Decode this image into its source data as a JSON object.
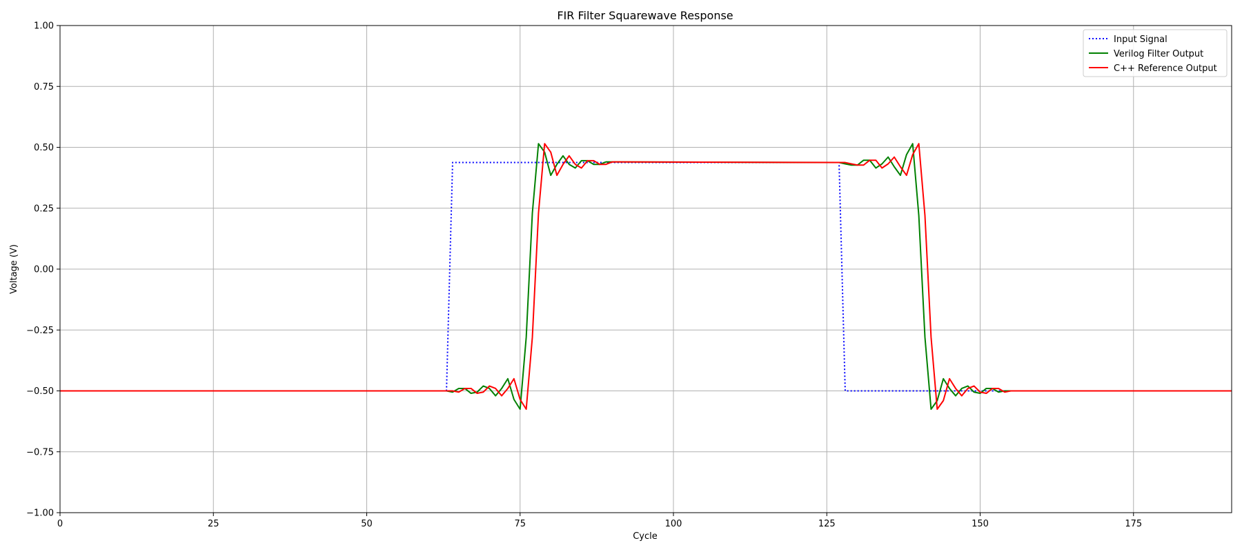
{
  "chart_data": {
    "type": "line",
    "title": "FIR Filter Squarewave Response",
    "xlabel": "Cycle",
    "ylabel": "Voltage (V)",
    "xlim": [
      0,
      191
    ],
    "ylim": [
      -1.0,
      1.0
    ],
    "xticks": [
      0,
      25,
      50,
      75,
      100,
      125,
      150,
      175
    ],
    "yticks": [
      -1.0,
      -0.75,
      -0.5,
      -0.25,
      0.0,
      0.25,
      0.5,
      0.75,
      1.0
    ],
    "xtick_labels": [
      "0",
      "25",
      "50",
      "75",
      "100",
      "125",
      "150",
      "175"
    ],
    "ytick_labels": [
      "−1.00",
      "−0.75",
      "−0.50",
      "−0.25",
      "0.00",
      "0.25",
      "0.50",
      "0.75",
      "1.00"
    ],
    "grid": true,
    "legend_position": "top-right",
    "series": [
      {
        "name": "Input Signal",
        "color": "#0000ff",
        "style": "dotted",
        "x": [
          0,
          63,
          64,
          127,
          128,
          191
        ],
        "y": [
          -0.5,
          -0.5,
          0.4375,
          0.4375,
          -0.5,
          -0.5
        ]
      },
      {
        "name": "Verilog Filter Output",
        "color": "#008000",
        "style": "solid",
        "x": [
          0,
          63,
          64,
          65,
          66,
          67,
          68,
          69,
          70,
          71,
          72,
          73,
          74,
          75,
          76,
          77,
          78,
          79,
          80,
          81,
          82,
          83,
          84,
          85,
          86,
          87,
          88,
          89,
          90,
          127,
          128,
          129,
          130,
          131,
          132,
          133,
          134,
          135,
          136,
          137,
          138,
          139,
          140,
          141,
          142,
          143,
          144,
          145,
          146,
          147,
          148,
          149,
          150,
          151,
          152,
          153,
          154,
          191
        ],
        "y": [
          -0.5,
          -0.5,
          -0.505,
          -0.49,
          -0.49,
          -0.51,
          -0.505,
          -0.48,
          -0.49,
          -0.52,
          -0.49,
          -0.45,
          -0.535,
          -0.575,
          -0.28,
          0.23,
          0.515,
          0.48,
          0.385,
          0.43,
          0.465,
          0.43,
          0.415,
          0.445,
          0.445,
          0.43,
          0.43,
          0.44,
          0.44,
          0.4375,
          0.432,
          0.427,
          0.427,
          0.447,
          0.447,
          0.415,
          0.432,
          0.46,
          0.42,
          0.385,
          0.47,
          0.515,
          0.22,
          -0.28,
          -0.575,
          -0.54,
          -0.45,
          -0.49,
          -0.52,
          -0.49,
          -0.48,
          -0.505,
          -0.51,
          -0.49,
          -0.49,
          -0.505,
          -0.5,
          -0.5
        ]
      },
      {
        "name": "C++ Reference Output",
        "color": "#ff0000",
        "style": "solid",
        "x": [
          0,
          64,
          65,
          66,
          67,
          68,
          69,
          70,
          71,
          72,
          73,
          74,
          75,
          76,
          77,
          78,
          79,
          80,
          81,
          82,
          83,
          84,
          85,
          86,
          87,
          88,
          89,
          90,
          128,
          129,
          130,
          131,
          132,
          133,
          134,
          135,
          136,
          137,
          138,
          139,
          140,
          141,
          142,
          143,
          144,
          145,
          146,
          147,
          148,
          149,
          150,
          151,
          152,
          153,
          154,
          155,
          191
        ],
        "y": [
          -0.5,
          -0.5,
          -0.505,
          -0.49,
          -0.49,
          -0.51,
          -0.505,
          -0.48,
          -0.49,
          -0.52,
          -0.49,
          -0.45,
          -0.535,
          -0.575,
          -0.28,
          0.23,
          0.515,
          0.48,
          0.385,
          0.43,
          0.465,
          0.43,
          0.415,
          0.445,
          0.445,
          0.43,
          0.43,
          0.44,
          0.4375,
          0.432,
          0.427,
          0.427,
          0.447,
          0.447,
          0.415,
          0.432,
          0.46,
          0.42,
          0.385,
          0.47,
          0.515,
          0.22,
          -0.28,
          -0.575,
          -0.54,
          -0.45,
          -0.49,
          -0.52,
          -0.49,
          -0.48,
          -0.505,
          -0.51,
          -0.49,
          -0.49,
          -0.505,
          -0.5,
          -0.5
        ]
      }
    ]
  }
}
